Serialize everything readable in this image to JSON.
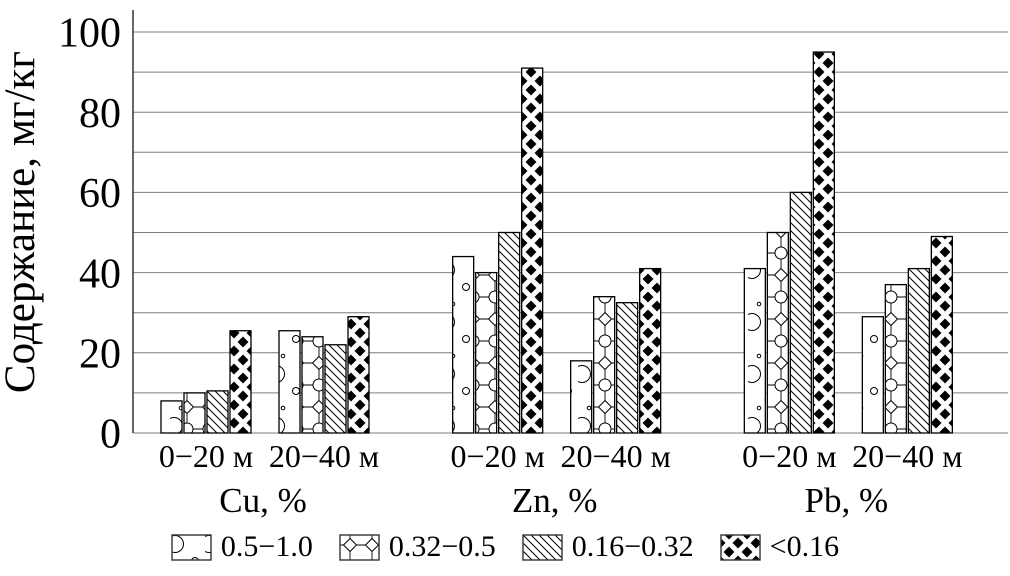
{
  "chart_data": {
    "type": "bar",
    "title": "",
    "ylabel": "Содержание, мг/кг",
    "xlabel": "",
    "ylim": [
      0,
      100
    ],
    "yticks": [
      0,
      20,
      40,
      60,
      80,
      100
    ],
    "gridline_step": 10,
    "grid": true,
    "legend_position": "bottom",
    "bar_fill": "#ffffff",
    "bar_stroke": "#000000",
    "grid_color": "#7f7f7f",
    "series": [
      {
        "name": "0.5−1.0",
        "pattern": "bubbles"
      },
      {
        "name": "0.32−0.5",
        "pattern": "chain"
      },
      {
        "name": "0.16−0.32",
        "pattern": "diagonal"
      },
      {
        "name": "<0.16",
        "pattern": "woven"
      }
    ],
    "groups": [
      {
        "label": "Cu, %",
        "subgroups": [
          {
            "label": "0−20 м",
            "values": [
              8,
              10,
              10.5,
              25.5
            ]
          },
          {
            "label": "20−40 м",
            "values": [
              25.5,
              24,
              22,
              29
            ]
          }
        ]
      },
      {
        "label": "Zn, %",
        "subgroups": [
          {
            "label": "0−20 м",
            "values": [
              44,
              40,
              50,
              91
            ]
          },
          {
            "label": "20−40 м",
            "values": [
              18,
              34,
              32.5,
              41
            ]
          }
        ]
      },
      {
        "label": "Pb, %",
        "subgroups": [
          {
            "label": "0−20 м",
            "values": [
              41,
              50,
              60,
              95
            ]
          },
          {
            "label": "20−40 м",
            "values": [
              29,
              37,
              41,
              49
            ]
          }
        ]
      }
    ]
  }
}
